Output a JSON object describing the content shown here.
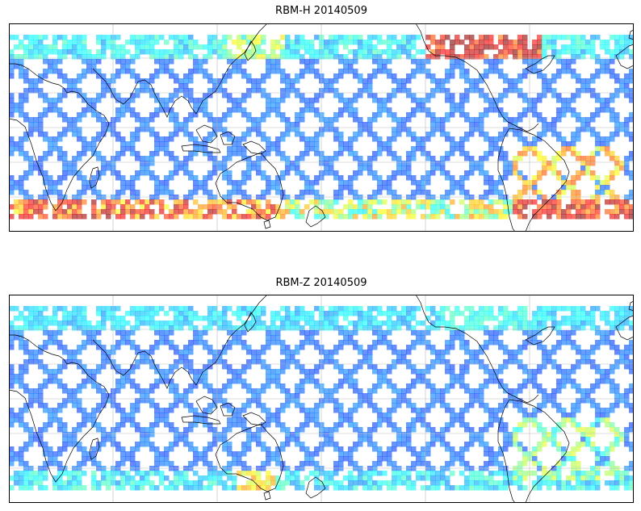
{
  "panels": [
    {
      "id": "h",
      "title": "RBM-H 20140509",
      "colormap": "jet",
      "alpha": 0.6,
      "high_lat_intensity": "strong"
    },
    {
      "id": "z",
      "title": "RBM-Z 20140509",
      "colormap": "jet",
      "alpha": 0.6,
      "high_lat_intensity": "weak"
    }
  ],
  "map": {
    "projection": "cylindrical",
    "grid": true,
    "coastlines": true,
    "lat_range": [
      -90,
      90
    ],
    "lon_range": [
      -180,
      180
    ]
  }
}
